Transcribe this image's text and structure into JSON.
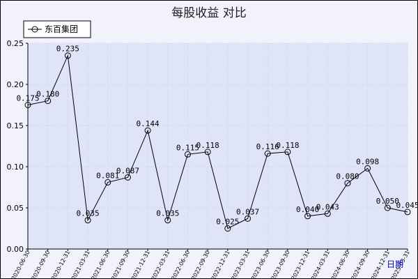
{
  "chart_data": {
    "type": "line",
    "title": "每股收益  对比",
    "xlabel": "日期",
    "ylabel": "",
    "ylim": [
      0,
      0.25
    ],
    "yticks": [
      "0.00",
      "0.05",
      "0.10",
      "0.15",
      "0.20",
      "0.25"
    ],
    "grid": true,
    "legend_position": "top-left",
    "colors": {
      "line": "#000000",
      "plot_background": "#dfe4f8",
      "grid": "#c5cef2",
      "frame_background": "#f1f2fb"
    },
    "categories": [
      "2020-06-30",
      "2020-09-30",
      "2020-12-31",
      "2021-03-31",
      "2021-06-30",
      "2021-09-30",
      "2021-12-31",
      "2022-03-31",
      "2022-06-30",
      "2022-09-30",
      "2022-12-31",
      "2023-03-31",
      "2023-06-30",
      "2023-09-30",
      "2023-12-31",
      "2024-03-31",
      "2024-06-30",
      "2024-09-30",
      "2024-12-31",
      "2025-03-31"
    ],
    "series": [
      {
        "name": "东百集团",
        "values": [
          0.175,
          0.18,
          0.235,
          0.035,
          0.081,
          0.087,
          0.144,
          0.035,
          0.115,
          0.118,
          0.025,
          0.037,
          0.116,
          0.118,
          0.04,
          0.043,
          0.08,
          0.098,
          0.05,
          0.045
        ],
        "labels": [
          "0.175",
          "0.180",
          "0.235",
          "0.035",
          "0.081",
          "0.087",
          "0.144",
          "0.035",
          "0.115",
          "0.118",
          "0.025",
          "0.037",
          "0.116",
          "0.118",
          "0.040",
          "0.043",
          "0.080",
          "0.098",
          "0.050",
          "0.045"
        ]
      }
    ]
  }
}
